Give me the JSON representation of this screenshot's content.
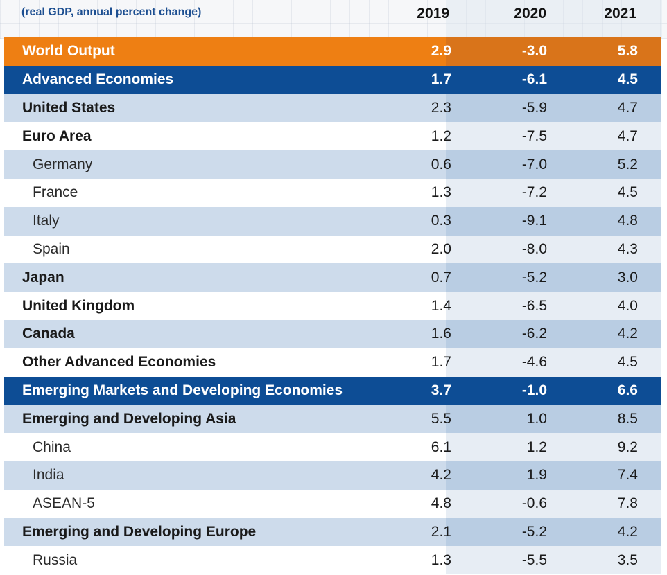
{
  "subtitle": "(real GDP, annual percent change)",
  "columns": [
    "2019",
    "2020",
    "2021"
  ],
  "colors": {
    "world_output": "#ee7f13",
    "group_header": "#0d4d95",
    "subtitle": "#1d4f91",
    "shade_row": "#cddbeb",
    "shade_col_2020": "#b9cde3"
  },
  "rows": [
    {
      "label": "World Output",
      "v2019": "2.9",
      "v2020": "-3.0",
      "v2021": "5.8",
      "style": "orange"
    },
    {
      "label": "Advanced Economies",
      "v2019": "1.7",
      "v2020": "-6.1",
      "v2021": "4.5",
      "style": "navy"
    },
    {
      "label": "United States",
      "v2019": "2.3",
      "v2020": "-5.9",
      "v2021": "4.7",
      "style": "shade bold"
    },
    {
      "label": "Euro Area",
      "v2019": "1.2",
      "v2020": "-7.5",
      "v2021": "4.7",
      "style": "plain bold"
    },
    {
      "label": "Germany",
      "v2019": "0.6",
      "v2020": "-7.0",
      "v2021": "5.2",
      "style": "shade indent"
    },
    {
      "label": "France",
      "v2019": "1.3",
      "v2020": "-7.2",
      "v2021": "4.5",
      "style": "plain indent"
    },
    {
      "label": "Italy",
      "v2019": "0.3",
      "v2020": "-9.1",
      "v2021": "4.8",
      "style": "shade indent"
    },
    {
      "label": "Spain",
      "v2019": "2.0",
      "v2020": "-8.0",
      "v2021": "4.3",
      "style": "plain indent"
    },
    {
      "label": "Japan",
      "v2019": "0.7",
      "v2020": "-5.2",
      "v2021": "3.0",
      "style": "shade bold"
    },
    {
      "label": "United Kingdom",
      "v2019": "1.4",
      "v2020": "-6.5",
      "v2021": "4.0",
      "style": "plain bold"
    },
    {
      "label": "Canada",
      "v2019": "1.6",
      "v2020": "-6.2",
      "v2021": "4.2",
      "style": "shade bold"
    },
    {
      "label": "Other Advanced Economies",
      "v2019": "1.7",
      "v2020": "-4.6",
      "v2021": "4.5",
      "style": "plain bold"
    },
    {
      "label": "Emerging Markets and Developing Economies",
      "v2019": "3.7",
      "v2020": "-1.0",
      "v2021": "6.6",
      "style": "navy"
    },
    {
      "label": "Emerging and Developing Asia",
      "v2019": "5.5",
      "v2020": "1.0",
      "v2021": "8.5",
      "style": "shade bold"
    },
    {
      "label": "China",
      "v2019": "6.1",
      "v2020": "1.2",
      "v2021": "9.2",
      "style": "plain indent"
    },
    {
      "label": "India",
      "v2019": "4.2",
      "v2020": "1.9",
      "v2021": "7.4",
      "style": "shade indent"
    },
    {
      "label": "ASEAN-5",
      "v2019": "4.8",
      "v2020": "-0.6",
      "v2021": "7.8",
      "style": "plain indent"
    },
    {
      "label": "Emerging and Developing Europe",
      "v2019": "2.1",
      "v2020": "-5.2",
      "v2021": "4.2",
      "style": "shade bold"
    },
    {
      "label": "Russia",
      "v2019": "1.3",
      "v2020": "-5.5",
      "v2021": "3.5",
      "style": "plain indent"
    }
  ]
}
